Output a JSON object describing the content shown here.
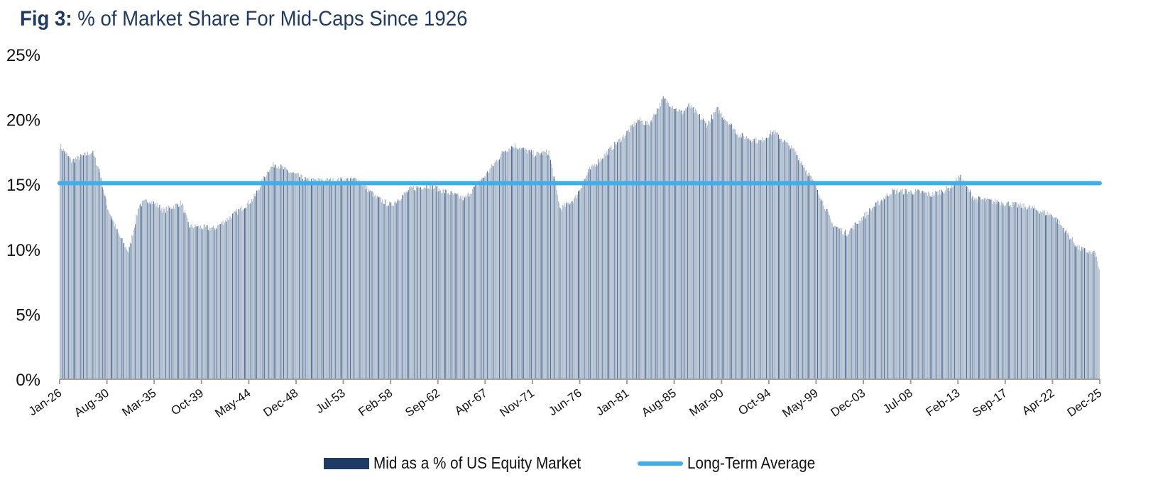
{
  "title_prefix": "Fig 3:",
  "title_text": "% of Market Share For Mid-Caps Since 1926",
  "colors": {
    "title": "#1f3a63",
    "bar_light": "#a7b6c9",
    "bar_dark": "#4d6a90",
    "average_line": "#41aeea",
    "axis": "#a0a0a0"
  },
  "chart_data": {
    "type": "bar",
    "title": "% of Market Share For Mid-Caps Since 1926",
    "xlabel": "",
    "ylabel": "",
    "ylim": [
      0,
      25
    ],
    "y_ticks": [
      "0%",
      "5%",
      "10%",
      "15%",
      "20%",
      "25%"
    ],
    "y_tick_values": [
      0,
      5,
      10,
      15,
      20,
      25
    ],
    "x_range": [
      "Jan-26",
      "Dec-25"
    ],
    "x_tick_labels": [
      "Jan-26",
      "Aug-30",
      "Mar-35",
      "Oct-39",
      "May-44",
      "Dec-48",
      "Jul-53",
      "Feb-58",
      "Sep-62",
      "Apr-67",
      "Nov-71",
      "Jun-76",
      "Jan-81",
      "Aug-85",
      "Mar-90",
      "Oct-94",
      "May-99",
      "Dec-03",
      "Jul-08",
      "Feb-13",
      "Sep-17",
      "Apr-22",
      "Dec-25"
    ],
    "grid": false,
    "legend_position": "bottom-center",
    "series": [
      {
        "name": "Mid as a % of US Equity Market",
        "type": "bar",
        "frequency": "monthly",
        "anchor_points": {
          "year_fraction": [
            1926.0,
            1927.1,
            1929.1,
            1929.8,
            1930.5,
            1931.6,
            1932.6,
            1933.6,
            1934.6,
            1936.0,
            1937.7,
            1938.4,
            1940.8,
            1942.9,
            1944.6,
            1946.0,
            1946.7,
            1947.7,
            1949.8,
            1952.5,
            1954.6,
            1956.4,
            1957.8,
            1959.8,
            1961.5,
            1964.9,
            1967.0,
            1968.7,
            1969.7,
            1971.7,
            1973.0,
            1974.1,
            1975.5,
            1976.9,
            1978.9,
            1980.3,
            1981.6,
            1982.6,
            1984.0,
            1985.8,
            1986.5,
            1988.2,
            1989.2,
            1991.3,
            1993.3,
            1994.6,
            1996.7,
            1998.8,
            2000.2,
            2001.6,
            2004.0,
            2006.0,
            2008.8,
            2009.8,
            2011.5,
            2012.5,
            2013.9,
            2016.6,
            2019.4,
            2021.5,
            2022.9,
            2023.9,
            2025.6,
            2025.9
          ],
          "value_pct": [
            18.0,
            16.8,
            17.5,
            16.1,
            13.4,
            11.2,
            9.8,
            13.4,
            13.8,
            13.0,
            13.6,
            11.8,
            11.6,
            12.8,
            13.9,
            16.1,
            16.6,
            16.1,
            15.3,
            15.3,
            15.4,
            14.0,
            13.4,
            14.7,
            14.9,
            13.9,
            15.8,
            17.6,
            18.0,
            17.3,
            17.5,
            13.1,
            13.9,
            16.1,
            17.7,
            18.8,
            20.0,
            19.6,
            21.6,
            20.5,
            21.1,
            19.6,
            20.8,
            18.8,
            18.3,
            19.1,
            17.5,
            14.7,
            12.0,
            11.2,
            13.1,
            14.5,
            14.4,
            14.2,
            14.7,
            15.6,
            13.9,
            13.6,
            13.2,
            12.6,
            11.2,
            10.1,
            9.6,
            8.5
          ]
        }
      },
      {
        "name": "Long-Term Average",
        "type": "line",
        "value_pct": 15.1
      }
    ]
  },
  "legend": {
    "items": [
      {
        "label": "Mid as a % of US Equity Market"
      },
      {
        "label": "Long-Term Average"
      }
    ]
  }
}
